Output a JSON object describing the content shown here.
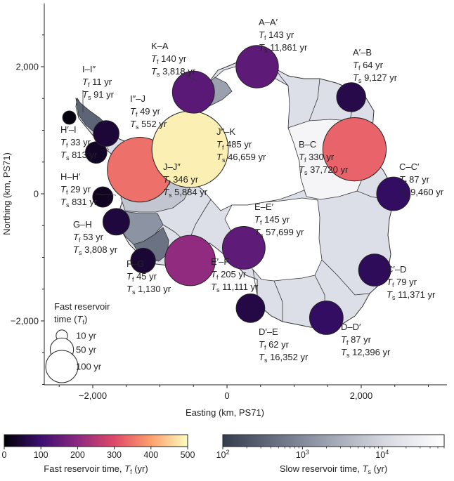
{
  "chart_data": {
    "type": "scatter",
    "xlabel": "Easting (km, PS71)",
    "ylabel": "Northing (km, PS71)",
    "x_ticks": [
      {
        "value": -2000,
        "label": "−2,000"
      },
      {
        "value": 0,
        "label": "0"
      },
      {
        "value": 2000,
        "label": "2,000"
      }
    ],
    "y_ticks": [
      {
        "value": 2000,
        "label": "2,000"
      },
      {
        "value": 0,
        "label": "0"
      },
      {
        "value": -2000,
        "label": "−2,000"
      }
    ],
    "xlim": [
      -3000,
      3100
    ],
    "ylim": [
      -3000,
      3000
    ],
    "basins": [
      {
        "name": "A–A′",
        "x": 450,
        "y": 2000,
        "tf": 143,
        "tf_text": "143 yr",
        "ts_text": "11,861 yr"
      },
      {
        "name": "A′–B",
        "x": 1850,
        "y": 1520,
        "tf": 64,
        "tf_text": "64 yr",
        "ts_text": "9,127 yr"
      },
      {
        "name": "B–C",
        "x": 1900,
        "y": 700,
        "tf": 330,
        "tf_text": "330 yr",
        "ts_text": "37,720 yr"
      },
      {
        "name": "C–C′",
        "x": 2480,
        "y": 0,
        "tf": 87,
        "tf_text": "87 yr",
        "ts_text": "9,460 yr"
      },
      {
        "name": "C′–D",
        "x": 2200,
        "y": -1200,
        "tf": 79,
        "tf_text": "79 yr",
        "ts_text": "11,371 yr"
      },
      {
        "name": "D–D′",
        "x": 1480,
        "y": -1950,
        "tf": 87,
        "tf_text": "87 yr",
        "ts_text": "12,396 yr"
      },
      {
        "name": "D′–E",
        "x": 350,
        "y": -1800,
        "tf": 62,
        "tf_text": "62 yr",
        "ts_text": "16,352 yr"
      },
      {
        "name": "E–E′",
        "x": 250,
        "y": -850,
        "tf": 145,
        "tf_text": "145 yr",
        "ts_text": "57,699 yr"
      },
      {
        "name": "E′–F",
        "x": -550,
        "y": -1050,
        "tf": 205,
        "tf_text": "205 yr",
        "ts_text": "11,111 yr"
      },
      {
        "name": "F–G",
        "x": -1250,
        "y": -1050,
        "tf": 45,
        "tf_text": "45 yr",
        "ts_text": "1,130 yr"
      },
      {
        "name": "G–H",
        "x": -1650,
        "y": -440,
        "tf": 53,
        "tf_text": "53 yr",
        "ts_text": "3,808 yr"
      },
      {
        "name": "H–H′",
        "x": -1850,
        "y": -50,
        "tf": 29,
        "tf_text": "29 yr",
        "ts_text": "831 yr"
      },
      {
        "name": "H′–I",
        "x": -1950,
        "y": 650,
        "tf": 33,
        "tf_text": "33 yr",
        "ts_text": "813 yr"
      },
      {
        "name": "I–I″",
        "x": -2350,
        "y": 1200,
        "tf": 11,
        "tf_text": "11 yr",
        "ts_text": "91 yr"
      },
      {
        "name": "I″–J",
        "x": -1800,
        "y": 950,
        "tf": 49,
        "tf_text": "49 yr",
        "ts_text": "552 yr"
      },
      {
        "name": "J–J″",
        "x": -1300,
        "y": 380,
        "tf": 346,
        "tf_text": "346 yr",
        "ts_text": "5,884 yr"
      },
      {
        "name": "J″–K",
        "x": -550,
        "y": 700,
        "tf": 485,
        "tf_text": "485 yr",
        "ts_text": "46,659 yr"
      },
      {
        "name": "K–A",
        "x": -500,
        "y": 1600,
        "tf": 140,
        "tf_text": "140 yr",
        "ts_text": "3,818 yr"
      }
    ],
    "size_legend": {
      "title_line1": "Fast reservoir",
      "title_line2": "time (",
      "title_sym": "T",
      "title_sub": "f",
      "title_close": ")",
      "items": [
        {
          "tf": 10,
          "label": "10 yr"
        },
        {
          "tf": 50,
          "label": "50 yr"
        },
        {
          "tf": 100,
          "label": "100 yr"
        }
      ]
    },
    "colorbar_fast": {
      "label_prefix": "Fast reservoir time, ",
      "label_sym": "T",
      "label_sub": "f",
      "label_suffix": " (yr)",
      "min": 0,
      "max": 500,
      "ticks": [
        {
          "value": 0,
          "label": "0"
        },
        {
          "value": 100,
          "label": "100"
        },
        {
          "value": 200,
          "label": "200"
        },
        {
          "value": 300,
          "label": "300"
        },
        {
          "value": 400,
          "label": "400"
        },
        {
          "value": 500,
          "label": "500"
        }
      ],
      "colors": [
        "#000004",
        "#3b0f70",
        "#8c2981",
        "#de4968",
        "#fe9f6d",
        "#fcfdbf"
      ]
    },
    "colorbar_slow": {
      "label_prefix": "Slow reservoir time, ",
      "label_sym": "T",
      "label_sub": "s",
      "label_suffix": " (yr)",
      "scale": "log",
      "min": 100,
      "max": 60000,
      "ticks": [
        {
          "value": 100,
          "base": "10",
          "exp": "2"
        },
        {
          "value": 1000,
          "base": "10",
          "exp": "3"
        },
        {
          "value": 10000,
          "base": "10",
          "exp": "4"
        }
      ],
      "colors": [
        "#343d4e",
        "#6a7284",
        "#a3a8b5",
        "#dadce3",
        "#ffffff"
      ]
    },
    "text_sym_f": "T",
    "text_sub_f": "f",
    "text_sym_s": "T",
    "text_sub_s": "s"
  }
}
